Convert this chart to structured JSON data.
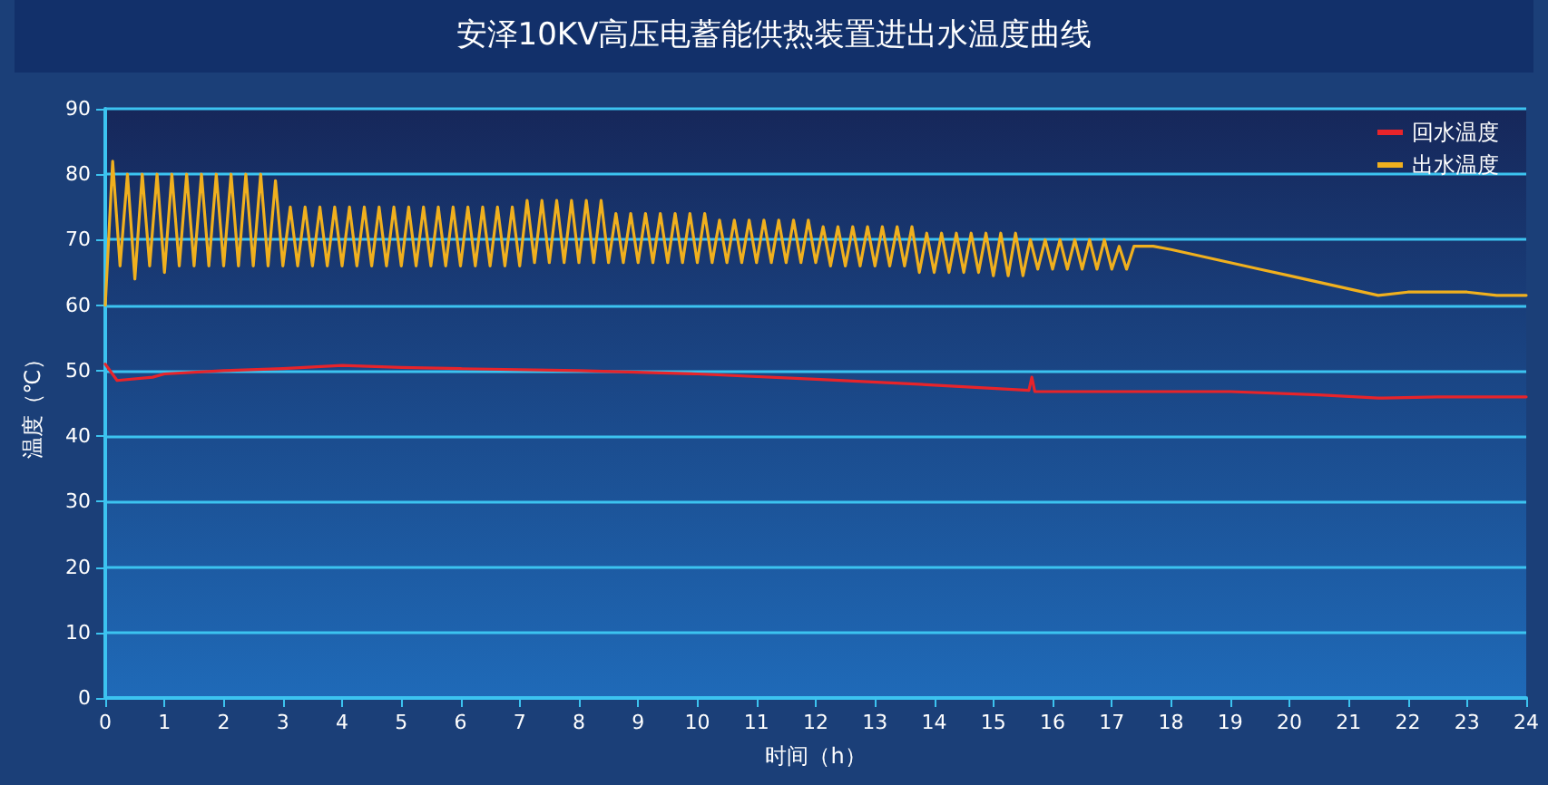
{
  "chart_data": {
    "type": "line",
    "title": "安泽10KV高压电蓄能供热装置进出水温度曲线",
    "xlabel": "时间（h）",
    "ylabel": "温度（℃）",
    "xlim": [
      0,
      24
    ],
    "xticks": [
      0,
      1,
      2,
      3,
      4,
      5,
      6,
      7,
      8,
      9,
      10,
      11,
      12,
      13,
      14,
      15,
      16,
      17,
      18,
      19,
      20,
      21,
      22,
      23,
      24
    ],
    "ylim": [
      0,
      90
    ],
    "yticks": [
      0,
      10,
      20,
      30,
      40,
      50,
      60,
      70,
      80,
      90
    ],
    "grid": "y",
    "legend": "top right",
    "marker": "none",
    "line_style": "solid",
    "series": [
      {
        "name": "回水温度",
        "color": "#e8242a",
        "x": [
          0,
          0.2,
          0.8,
          1,
          2,
          3,
          4,
          5,
          6,
          8,
          10,
          12,
          14,
          15.6,
          15.65,
          15.7,
          17,
          19,
          20.5,
          21.5,
          22.5,
          24
        ],
        "values": [
          51,
          48.5,
          49,
          49.5,
          50,
          50.3,
          50.8,
          50.5,
          50.3,
          50,
          49.5,
          48.7,
          47.8,
          47,
          49,
          46.8,
          46.8,
          46.8,
          46.3,
          45.8,
          46,
          46
        ]
      },
      {
        "name": "出水温度",
        "color": "#f0b01e",
        "x": [
          0,
          0.125,
          0.25,
          0.375,
          0.5,
          0.625,
          0.75,
          0.875,
          1,
          1.125,
          1.25,
          1.375,
          1.5,
          1.625,
          1.75,
          1.875,
          2,
          2.125,
          2.25,
          2.375,
          2.5,
          2.625,
          2.75,
          2.875,
          3,
          3.125,
          3.25,
          3.375,
          3.5,
          3.625,
          3.75,
          3.875,
          4,
          4.125,
          4.25,
          4.375,
          4.5,
          4.625,
          4.75,
          4.875,
          5,
          5.125,
          5.25,
          5.375,
          5.5,
          5.625,
          5.75,
          5.875,
          6,
          6.125,
          6.25,
          6.375,
          6.5,
          6.625,
          6.75,
          6.875,
          7,
          7.125,
          7.25,
          7.375,
          7.5,
          7.625,
          7.75,
          7.875,
          8,
          8.125,
          8.25,
          8.375,
          8.5,
          8.625,
          8.75,
          8.875,
          9,
          9.125,
          9.25,
          9.375,
          9.5,
          9.625,
          9.75,
          9.875,
          10,
          10.125,
          10.25,
          10.375,
          10.5,
          10.625,
          10.75,
          10.875,
          11,
          11.125,
          11.25,
          11.375,
          11.5,
          11.625,
          11.75,
          11.875,
          12,
          12.125,
          12.25,
          12.375,
          12.5,
          12.625,
          12.75,
          12.875,
          13,
          13.125,
          13.25,
          13.375,
          13.5,
          13.625,
          13.75,
          13.875,
          14,
          14.125,
          14.25,
          14.375,
          14.5,
          14.625,
          14.75,
          14.875,
          15,
          15.125,
          15.25,
          15.375,
          15.5,
          15.625,
          15.75,
          15.875,
          16,
          16.125,
          16.25,
          16.375,
          16.5,
          16.625,
          16.75,
          16.875,
          17,
          17.125,
          17.25,
          17.375,
          17.5,
          17.7,
          18,
          18.5,
          19,
          19.5,
          20,
          20.5,
          21,
          21.5,
          22,
          22.5,
          23,
          23.5,
          24
        ],
        "values": [
          60,
          82,
          66,
          80,
          64,
          80,
          66,
          80,
          65,
          80,
          66,
          80,
          66,
          80,
          66,
          80,
          66,
          80,
          66,
          80,
          66,
          80,
          66,
          79,
          66,
          75,
          66,
          75,
          66,
          75,
          66,
          75,
          66,
          75,
          66,
          75,
          66,
          75,
          66,
          75,
          66,
          75,
          66,
          75,
          66,
          75,
          66,
          75,
          66,
          75,
          66,
          75,
          66,
          75,
          66,
          75,
          66,
          76,
          66.5,
          76,
          66.5,
          76,
          66.5,
          76,
          66.5,
          76,
          66.5,
          76,
          66.5,
          74,
          66.5,
          74,
          66.5,
          74,
          66.5,
          74,
          66.5,
          74,
          66.5,
          74,
          66.5,
          74,
          66.5,
          73,
          66.5,
          73,
          66.5,
          73,
          66.5,
          73,
          66.5,
          73,
          66.5,
          73,
          66.5,
          73,
          66.5,
          72,
          66,
          72,
          66,
          72,
          66,
          72,
          66,
          72,
          66,
          72,
          66,
          72,
          65,
          71,
          65,
          71,
          65,
          71,
          65,
          71,
          65,
          71,
          64.5,
          71,
          64.5,
          71,
          64.5,
          70,
          65.5,
          70,
          65.5,
          70,
          65.5,
          70,
          65.5,
          70,
          65.5,
          70,
          65.5,
          69,
          65.5,
          69,
          69,
          69,
          68.5,
          67.5,
          66.5,
          65.5,
          64.5,
          63.5,
          62.5,
          61.5,
          62,
          62,
          62,
          61.5,
          61.5
        ]
      }
    ]
  }
}
